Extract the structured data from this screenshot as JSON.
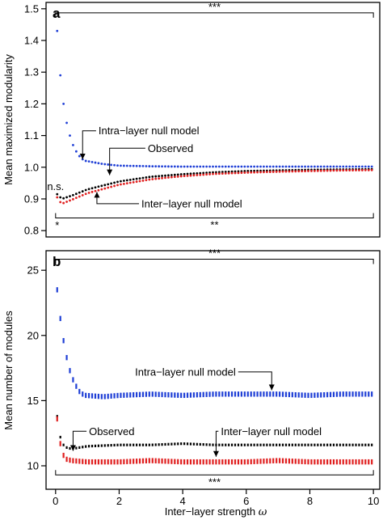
{
  "x_axis": {
    "label_main": "Inter−layer strength ",
    "label_symbol": "ω",
    "ticks": [
      0,
      2,
      4,
      6,
      8,
      10
    ],
    "tick_labels": [
      "0",
      "2",
      "4",
      "6",
      "8",
      "10"
    ],
    "xlim": [
      -0.3,
      10.2
    ]
  },
  "chart_data": [
    {
      "type": "scatter",
      "panel_label": "a",
      "ylabel": "Mean maximized modularity",
      "ylim": [
        0.78,
        1.52
      ],
      "yticks": [
        0.8,
        0.9,
        1.0,
        1.1,
        1.2,
        1.3,
        1.4,
        1.5
      ],
      "ytick_labels": [
        "0.8",
        "0.9",
        "1.0",
        "1.1",
        "1.2",
        "1.3",
        "1.4",
        "1.5"
      ],
      "series": [
        {
          "color": "#1f3fd6",
          "curve": "intra",
          "x": [
            0.05,
            0.15,
            0.25,
            0.35,
            0.45,
            0.55,
            0.65,
            0.75,
            0.85,
            0.95,
            1.5,
            2,
            3,
            4,
            5,
            6,
            7,
            8,
            9,
            10
          ],
          "y": [
            1.43,
            1.29,
            1.2,
            1.14,
            1.1,
            1.07,
            1.05,
            1.035,
            1.025,
            1.02,
            1.01,
            1.005,
            1.003,
            1.002,
            1.002,
            1.002,
            1.002,
            1.002,
            1.002,
            1.002
          ]
        },
        {
          "color": "#000000",
          "curve": "observed",
          "x": [
            0.05,
            0.15,
            0.25,
            0.5,
            1,
            2,
            3,
            4,
            5,
            6,
            7,
            8,
            9,
            10
          ],
          "y": [
            0.915,
            0.905,
            0.902,
            0.91,
            0.93,
            0.955,
            0.97,
            0.978,
            0.984,
            0.988,
            0.99,
            0.992,
            0.993,
            0.994
          ]
        },
        {
          "color": "#e01f1f",
          "curve": "inter",
          "x": [
            0.05,
            0.15,
            0.25,
            0.5,
            1,
            2,
            3,
            4,
            5,
            6,
            7,
            8,
            9,
            10
          ],
          "y": [
            0.905,
            0.89,
            0.887,
            0.897,
            0.918,
            0.945,
            0.962,
            0.972,
            0.979,
            0.983,
            0.986,
            0.988,
            0.99,
            0.991
          ]
        }
      ],
      "annotations": [
        {
          "text": "Intra−layer null model",
          "x": 1.35,
          "y": 1.115,
          "arrow_to": [
            0.85,
            1.025
          ]
        },
        {
          "text": "Observed",
          "x": 2.9,
          "y": 1.06,
          "arrow_to": [
            1.7,
            0.975
          ]
        },
        {
          "text": "Inter−layer null model",
          "x": 2.7,
          "y": 0.885,
          "arrow_to": [
            1.3,
            0.922
          ]
        }
      ],
      "labels": [
        {
          "text": "n.s.",
          "x": 0.0,
          "y": 0.928
        },
        {
          "text": "*",
          "x": 0.05,
          "y": 0.805
        }
      ],
      "brackets": [
        {
          "text": "***",
          "position": "top",
          "y": 1.487
        },
        {
          "text": "**",
          "position": "bottom",
          "y": 0.84
        }
      ]
    },
    {
      "type": "scatter",
      "panel_label": "b",
      "ylabel": "Mean number of modules",
      "ylim": [
        8.2,
        26.5
      ],
      "yticks": [
        10,
        15,
        20,
        25
      ],
      "ytick_labels": [
        "10",
        "15",
        "20",
        "25"
      ],
      "series": [
        {
          "color": "#1f3fd6",
          "curve": "intra",
          "x": [
            0.05,
            0.15,
            0.25,
            0.35,
            0.45,
            0.55,
            0.65,
            0.75,
            0.85,
            0.95,
            1.5,
            2,
            3,
            4,
            5,
            6,
            7,
            8,
            9,
            10
          ],
          "y": [
            23.5,
            21.3,
            19.6,
            18.3,
            17.3,
            16.6,
            16.1,
            15.7,
            15.5,
            15.4,
            15.3,
            15.4,
            15.5,
            15.4,
            15.5,
            15.5,
            15.5,
            15.4,
            15.5,
            15.5
          ]
        },
        {
          "color": "#000000",
          "curve": "observed",
          "x": [
            0.05,
            0.15,
            0.25,
            0.35,
            0.5,
            1,
            2,
            3,
            4,
            5,
            6,
            7,
            8,
            9,
            10
          ],
          "y": [
            13.8,
            12.2,
            11.6,
            11.4,
            11.3,
            11.5,
            11.6,
            11.6,
            11.7,
            11.6,
            11.6,
            11.6,
            11.6,
            11.6,
            11.6
          ]
        },
        {
          "color": "#e01f1f",
          "curve": "inter",
          "x": [
            0.05,
            0.15,
            0.25,
            0.35,
            0.5,
            1,
            2,
            3,
            4,
            5,
            6,
            7,
            8,
            9,
            10
          ],
          "y": [
            13.6,
            11.7,
            10.8,
            10.5,
            10.4,
            10.3,
            10.3,
            10.4,
            10.3,
            10.3,
            10.3,
            10.4,
            10.3,
            10.3,
            10.3
          ]
        }
      ],
      "annotations": [
        {
          "text": "Intra−layer null model",
          "x": 2.5,
          "y": 17.2,
          "arrow_to": [
            6.8,
            15.8
          ]
        },
        {
          "text": "Observed",
          "x": 1.05,
          "y": 12.65,
          "arrow_to": [
            0.55,
            11.15
          ]
        },
        {
          "text": "Inter−layer null model",
          "x": 5.2,
          "y": 12.65,
          "arrow_to": [
            5.05,
            10.7
          ]
        }
      ],
      "labels": [],
      "brackets": [
        {
          "text": "***",
          "position": "top",
          "y": 25.85
        },
        {
          "text": "***",
          "position": "bottom",
          "y": 9.3
        }
      ]
    }
  ]
}
